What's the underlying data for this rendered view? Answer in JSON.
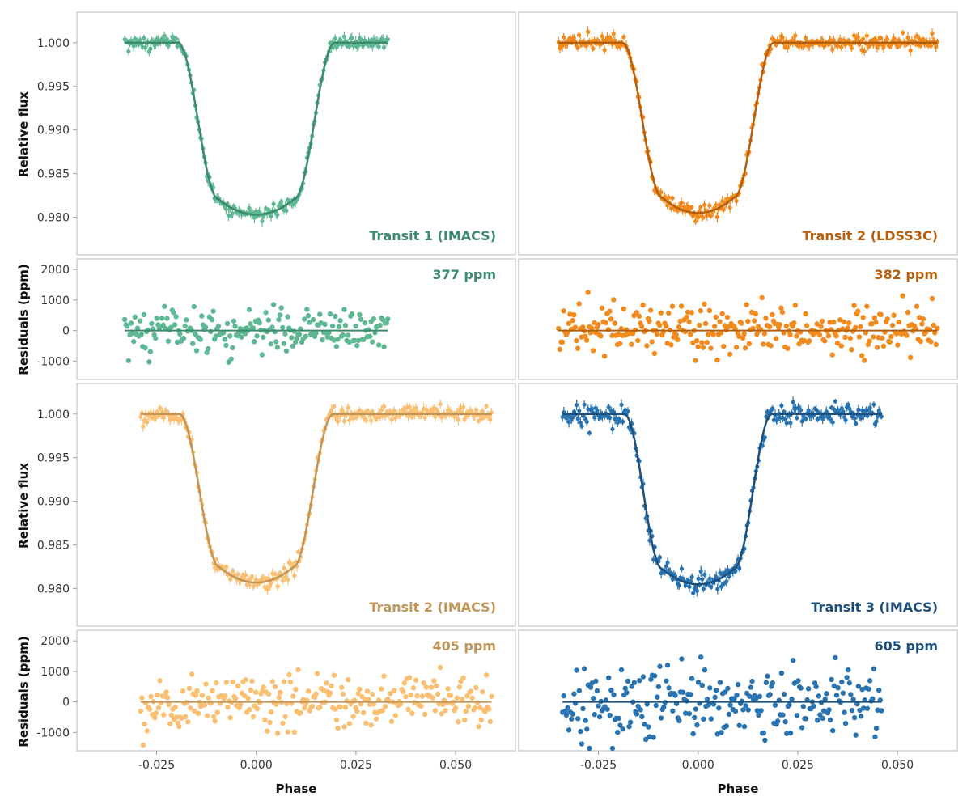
{
  "colors": {
    "transit1_imacs": "#5fb894",
    "transit1_imacs_model": "#3d8a6c",
    "transit2_ldss3c": "#f28b1e",
    "transit2_ldss3c_model": "#b35f0c",
    "transit2_imacs": "#fbbf72",
    "transit2_imacs_model": "#c09558",
    "transit3_imacs": "#2873b0",
    "transit3_imacs_model": "#1d4f7c"
  },
  "axes": {
    "flux_ylabel": "Relative flux",
    "resid_ylabel": "Residuals (ppm)",
    "xlabel": "Phase",
    "x_ticks": [
      "-0.025",
      "0.000",
      "0.025",
      "0.050"
    ],
    "flux_ticks": [
      "1.000",
      "0.995",
      "0.990",
      "0.985",
      "0.980"
    ],
    "resid_ticks": [
      "2000",
      "1000",
      "0",
      "-1000"
    ]
  },
  "chart_data": [
    {
      "type": "scatter",
      "title": "Transit 1 (IMACS)",
      "rms_label": "377 ppm",
      "color": "#5fb894",
      "x_range": [
        -0.045,
        0.065
      ],
      "flux_ylim": [
        0.9757,
        1.0035
      ],
      "resid_ylim": [
        -1600,
        2350
      ],
      "phase_coverage": [
        -0.033,
        0.033
      ],
      "transit_model": {
        "depth": 0.0197,
        "t1": 0.0197,
        "t2": 0.0095,
        "baseline": 1.0
      },
      "model_points": [
        [
          -0.033,
          1.0
        ],
        [
          -0.0197,
          1.0
        ],
        [
          -0.0146,
          0.99
        ],
        [
          -0.0095,
          0.982
        ],
        [
          0.0,
          0.9803
        ],
        [
          0.0095,
          0.982
        ],
        [
          0.0146,
          0.99
        ],
        [
          0.0197,
          1.0
        ],
        [
          0.033,
          1.0
        ]
      ],
      "residual_rms_ppm": 377,
      "residual_samples_ppm": [
        -200,
        600,
        -800,
        300,
        100,
        -400,
        700,
        200,
        -300,
        500,
        0,
        -500,
        800,
        100,
        -200,
        400,
        -600,
        300,
        0,
        1200,
        -300,
        200,
        -500,
        600,
        100,
        300
      ]
    },
    {
      "type": "scatter",
      "title": "Transit 2 (LDSS3C)",
      "rms_label": "382 ppm",
      "color": "#f28b1e",
      "x_range": [
        -0.045,
        0.065
      ],
      "flux_ylim": [
        0.9757,
        1.0035
      ],
      "resid_ylim": [
        -1600,
        2350
      ],
      "phase_coverage": [
        -0.035,
        0.06
      ],
      "transit_model": {
        "depth": 0.0195,
        "t1": 0.019,
        "t2": 0.009,
        "baseline": 1.0
      },
      "model_points": [
        [
          -0.035,
          1.0
        ],
        [
          -0.019,
          1.0
        ],
        [
          -0.014,
          0.99
        ],
        [
          -0.009,
          0.982
        ],
        [
          0.0,
          0.9805
        ],
        [
          0.009,
          0.982
        ],
        [
          0.014,
          0.99
        ],
        [
          0.019,
          1.0
        ],
        [
          0.06,
          1.0
        ]
      ],
      "residual_rms_ppm": 382,
      "residual_samples_ppm": [
        -700,
        700,
        -500,
        300,
        100,
        -400,
        600,
        200,
        -300,
        900,
        0,
        -500,
        800,
        100,
        -1100,
        400,
        -600,
        300,
        1200,
        -900,
        -300,
        200,
        900,
        500,
        -800,
        600
      ]
    },
    {
      "type": "scatter",
      "title": "Transit 2 (IMACS)",
      "rms_label": "405 ppm",
      "color": "#fbbf72",
      "x_range": [
        -0.045,
        0.065
      ],
      "flux_ylim": [
        0.9757,
        1.0035
      ],
      "resid_ylim": [
        -1600,
        2350
      ],
      "phase_coverage": [
        -0.029,
        0.059
      ],
      "transit_model": {
        "depth": 0.0193,
        "t1": 0.0193,
        "t2": 0.0092,
        "baseline": 1.0
      },
      "model_points": [
        [
          -0.029,
          1.0
        ],
        [
          -0.0193,
          1.0
        ],
        [
          -0.0143,
          0.99
        ],
        [
          -0.0092,
          0.982
        ],
        [
          0.0,
          0.9807
        ],
        [
          0.0092,
          0.982
        ],
        [
          0.0143,
          0.99
        ],
        [
          0.0193,
          1.0
        ],
        [
          0.059,
          1.0
        ]
      ],
      "residual_rms_ppm": 405,
      "residual_samples_ppm": [
        -500,
        500,
        -900,
        600,
        100,
        -400,
        800,
        200,
        -300,
        500,
        0,
        -700,
        900,
        100,
        -200,
        400,
        -600,
        1000,
        0,
        800,
        -300,
        200,
        -900,
        600,
        1100,
        -600
      ]
    },
    {
      "type": "scatter",
      "title": "Transit 3 (IMACS)",
      "rms_label": "605 ppm",
      "color": "#2873b0",
      "x_range": [
        -0.045,
        0.065
      ],
      "flux_ylim": [
        0.9757,
        1.0035
      ],
      "resid_ylim": [
        -1600,
        2350
      ],
      "phase_coverage": [
        -0.034,
        0.046
      ],
      "transit_model": {
        "depth": 0.0195,
        "t1": 0.0185,
        "t2": 0.009,
        "baseline": 1.0
      },
      "model_points": [
        [
          -0.034,
          1.0
        ],
        [
          -0.0185,
          1.0
        ],
        [
          -0.0137,
          0.99
        ],
        [
          -0.009,
          0.982
        ],
        [
          0.0,
          0.9805
        ],
        [
          0.009,
          0.982
        ],
        [
          0.0137,
          0.99
        ],
        [
          0.0185,
          1.0
        ],
        [
          0.046,
          1.0
        ]
      ],
      "residual_rms_ppm": 605,
      "residual_samples_ppm": [
        500,
        -900,
        1200,
        -1200,
        300,
        800,
        -600,
        1500,
        -1000,
        200,
        1300,
        -1100,
        600,
        -300,
        1400,
        -1600,
        900,
        -800,
        1500,
        -500,
        1000,
        1300,
        -1200,
        400,
        -1000,
        1100
      ]
    }
  ]
}
